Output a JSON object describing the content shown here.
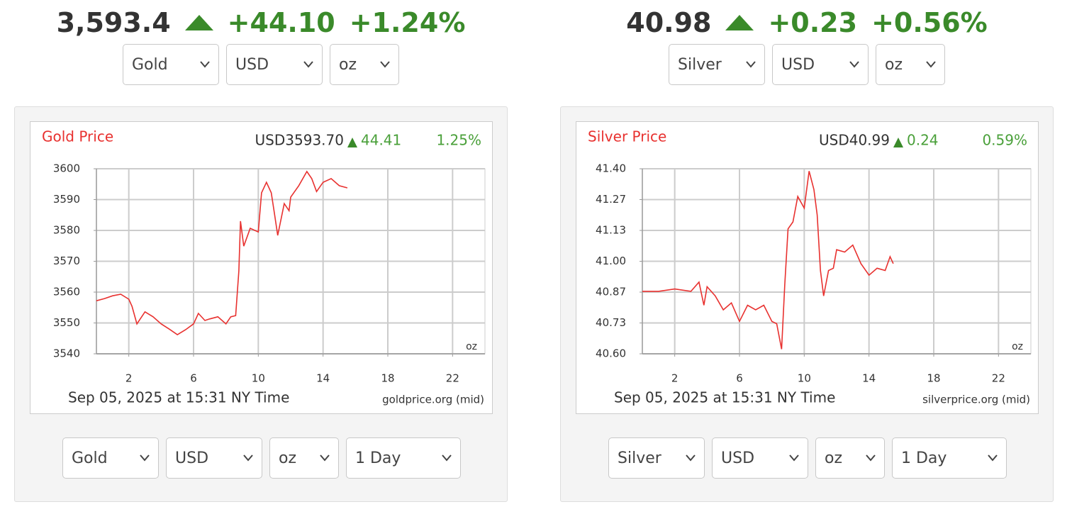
{
  "panels": [
    {
      "price": "3,593.4",
      "change": "+44.10",
      "change_pct": "+1.24%",
      "top_selects": [
        "Gold",
        "USD",
        "oz"
      ],
      "bottom_selects": [
        "Gold",
        "USD",
        "oz",
        "1 Day"
      ],
      "chart": {
        "type": "line",
        "title": "Gold Price",
        "quote": "USD3593.70",
        "quote_change": "44.41",
        "quote_change_pct": "1.25%",
        "timestamp": "Sep 05, 2025 at 15:31 NY Time",
        "source": "goldprice.org (mid)",
        "unit": "oz",
        "color": "#e8312f",
        "x": [
          0,
          0.5,
          1,
          1.5,
          2,
          2.2,
          2.5,
          3,
          3.5,
          4,
          4.5,
          5,
          5.5,
          6,
          6.3,
          6.7,
          7,
          7.5,
          8,
          8.3,
          8.6,
          8.8,
          8.9,
          9.1,
          9.5,
          10,
          10.2,
          10.5,
          10.8,
          11,
          11.2,
          11.6,
          11.9,
          12,
          12.5,
          13,
          13.3,
          13.6,
          14,
          14.5,
          15,
          15.5
        ],
        "values": [
          3557.2,
          3557.9,
          3558.8,
          3559.3,
          3557.7,
          3555.4,
          3549.7,
          3553.6,
          3552,
          3549.7,
          3548,
          3546.2,
          3547.8,
          3549.7,
          3553.1,
          3550.8,
          3551.3,
          3552,
          3549.7,
          3552,
          3552.4,
          3566.9,
          3583,
          3574.9,
          3580.7,
          3579.5,
          3592.2,
          3595.6,
          3592.2,
          3585.3,
          3578.4,
          3588.7,
          3586.4,
          3590.8,
          3594.5,
          3599.1,
          3596.8,
          3592.6,
          3595.6,
          3596.8,
          3594.5,
          3593.8
        ],
        "xlim": [
          0,
          24
        ],
        "xticks": [
          2,
          6,
          10,
          14,
          18,
          22
        ],
        "ylim": [
          3540,
          3600
        ],
        "yticks": [
          3540,
          3550,
          3560,
          3570,
          3580,
          3590,
          3600
        ],
        "grid": true
      }
    },
    {
      "price": "40.98",
      "change": "+0.23",
      "change_pct": "+0.56%",
      "top_selects": [
        "Silver",
        "USD",
        "oz"
      ],
      "bottom_selects": [
        "Silver",
        "USD",
        "oz",
        "1 Day"
      ],
      "chart": {
        "type": "line",
        "title": "Silver Price",
        "quote": "USD40.99",
        "quote_change": "0.24",
        "quote_change_pct": "0.59%",
        "timestamp": "Sep 05, 2025 at 15:31 NY Time",
        "source": "silverprice.org (mid)",
        "unit": "oz",
        "color": "#e8312f",
        "x": [
          0,
          1,
          2,
          3,
          3.5,
          3.8,
          4,
          4.5,
          5,
          5.5,
          6,
          6.5,
          7,
          7.5,
          8,
          8.3,
          8.6,
          8.8,
          9,
          9.3,
          9.6,
          10,
          10.3,
          10.6,
          10.8,
          11,
          11.2,
          11.5,
          11.8,
          12,
          12.5,
          13,
          13.5,
          14,
          14.5,
          15,
          15.3,
          15.5
        ],
        "values": [
          40.87,
          40.87,
          40.88,
          40.87,
          40.91,
          40.81,
          40.89,
          40.85,
          40.79,
          40.82,
          40.74,
          40.81,
          40.79,
          40.81,
          40.74,
          40.73,
          40.62,
          40.9,
          41.14,
          41.17,
          41.28,
          41.23,
          41.39,
          41.31,
          41.2,
          40.96,
          40.85,
          40.96,
          40.97,
          41.05,
          41.04,
          41.07,
          40.99,
          40.94,
          40.97,
          40.96,
          41.02,
          40.99
        ],
        "xlim": [
          0,
          24
        ],
        "xticks": [
          2,
          6,
          10,
          14,
          18,
          22
        ],
        "ylim": [
          40.6,
          41.4
        ],
        "yticks": [
          {
            "value": 40.6,
            "label": "40.60"
          },
          {
            "value": 40.7333,
            "label": "40.73"
          },
          {
            "value": 40.8667,
            "label": "40.87"
          },
          {
            "value": 41,
            "label": "41.00"
          },
          {
            "value": 41.1333,
            "label": "41.13"
          },
          {
            "value": 41.2667,
            "label": "41.27"
          },
          {
            "value": 41.4,
            "label": "41.40"
          }
        ],
        "grid": true
      }
    }
  ]
}
